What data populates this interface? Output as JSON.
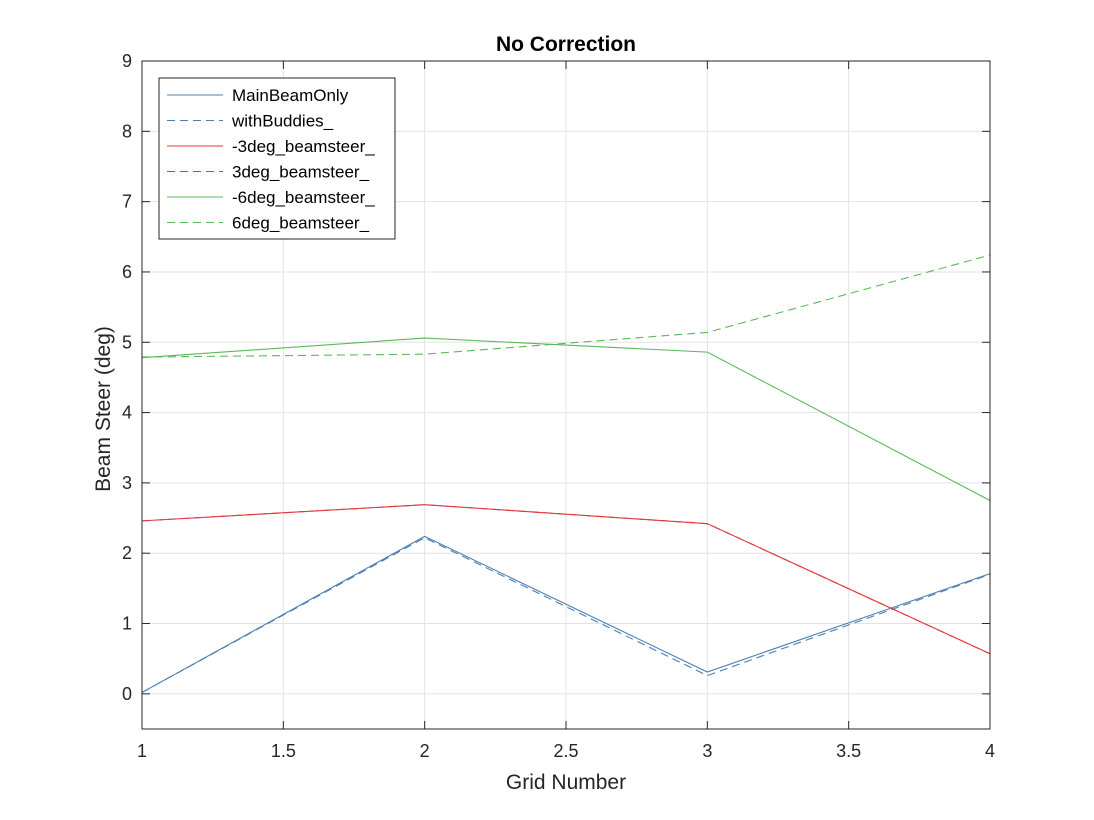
{
  "chart_data": {
    "type": "line",
    "title": "No Correction",
    "xlabel": "Grid Number",
    "ylabel": "Beam Steer (deg)",
    "x": [
      1,
      2,
      3,
      4
    ],
    "xlim": [
      1,
      4
    ],
    "ylim": [
      -0.5,
      9
    ],
    "xticks": [
      "1",
      "1.5",
      "2",
      "2.5",
      "3",
      "3.5",
      "4"
    ],
    "xtick_values": [
      1,
      1.5,
      2,
      2.5,
      3,
      3.5,
      4
    ],
    "yticks": [
      "0",
      "1",
      "2",
      "3",
      "4",
      "5",
      "6",
      "7",
      "8",
      "9"
    ],
    "ytick_values": [
      0,
      1,
      2,
      3,
      4,
      5,
      6,
      7,
      8,
      9
    ],
    "grid": true,
    "legend_position": "top-left",
    "series": [
      {
        "name": "MainBeamOnly",
        "values": [
          0.02,
          2.24,
          0.31,
          1.71
        ],
        "color": "#4d7fb3",
        "dash": "solid"
      },
      {
        "name": "withBuddies_",
        "values": [
          0.02,
          2.22,
          0.26,
          1.7
        ],
        "color": "#4d7fb3",
        "dash": "dashed"
      },
      {
        "name": "-3deg_beamsteer_",
        "values": [
          2.46,
          2.69,
          2.42,
          0.57
        ],
        "color": "#e0393e",
        "dash": "solid"
      },
      {
        "name": "3deg_beamsteer_",
        "values": [
          2.46,
          2.69,
          2.42,
          0.57
        ],
        "color": "#e0393e",
        "dash": "dashed"
      },
      {
        "name": "-6deg_beamsteer_",
        "values": [
          4.78,
          5.06,
          4.86,
          2.75
        ],
        "color": "#5cb85c",
        "dash": "solid"
      },
      {
        "name": "6deg_beamsteer_",
        "values": [
          4.79,
          4.83,
          5.14,
          6.24
        ],
        "color": "#5cb85c",
        "dash": "dashed"
      }
    ]
  }
}
